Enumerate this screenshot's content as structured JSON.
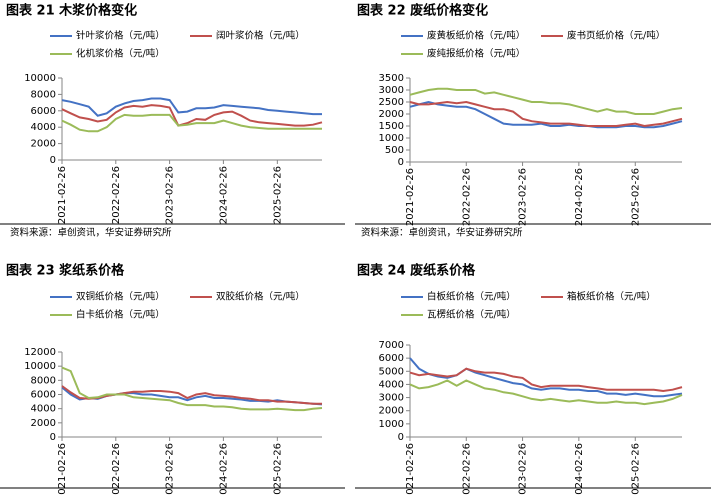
{
  "chart_data": [
    {
      "type": "line",
      "title": "图表 21 木浆价格变化",
      "source": "资料来源：卓创资讯，华安证券研究所",
      "x": [
        "2021-02-26",
        "2021-04-26",
        "2021-06-26",
        "2021-08-26",
        "2021-10-26",
        "2021-12-26",
        "2022-02-26",
        "2022-04-26",
        "2022-06-26",
        "2022-08-26",
        "2022-10-26",
        "2022-12-26",
        "2023-02-26",
        "2023-04-26",
        "2023-06-26",
        "2023-08-26",
        "2023-10-26",
        "2023-12-26",
        "2024-02-26",
        "2024-04-26",
        "2024-06-26",
        "2024-08-26",
        "2024-10-26",
        "2024-12-26",
        "2025-02-26",
        "2025-04-26",
        "2025-06-26",
        "2025-08-26",
        "2025-10-26",
        "2025-12-26"
      ],
      "xlim": [
        "2021-02-26",
        "2025-12-26"
      ],
      "xticks": [
        "2021-02-26",
        "2022-02-26",
        "2023-02-26",
        "2024-02-26",
        "2025-02-26"
      ],
      "ylim": [
        0,
        10000
      ],
      "yticks": [
        0,
        2000,
        4000,
        6000,
        8000,
        10000
      ],
      "series": [
        {
          "name": "针叶浆价格（元/吨）",
          "color": "#4472c4",
          "values": [
            7300,
            7100,
            6800,
            6500,
            5400,
            5700,
            6500,
            6900,
            7200,
            7300,
            7500,
            7500,
            7300,
            5800,
            5900,
            6300,
            6300,
            6400,
            6700,
            6600,
            6500,
            6400,
            6300,
            6100,
            6000,
            5900,
            5800,
            5700,
            5600,
            5600
          ]
        },
        {
          "name": "阔叶浆价格（元/吨）",
          "color": "#c0504d",
          "values": [
            6200,
            5700,
            5200,
            5000,
            4700,
            4900,
            5800,
            6400,
            6600,
            6500,
            6700,
            6600,
            6400,
            4200,
            4500,
            5000,
            4900,
            5500,
            5800,
            5900,
            5400,
            4800,
            4600,
            4500,
            4400,
            4300,
            4200,
            4200,
            4300,
            4600
          ]
        },
        {
          "name": "化机浆价格（元/吨）",
          "color": "#9bbb59",
          "values": [
            4800,
            4300,
            3700,
            3500,
            3500,
            4000,
            5000,
            5500,
            5400,
            5400,
            5500,
            5500,
            5500,
            4200,
            4300,
            4500,
            4500,
            4500,
            4800,
            4500,
            4200,
            4000,
            3900,
            3800,
            3800,
            3800,
            3800,
            3800,
            3800,
            3800
          ]
        }
      ]
    },
    {
      "type": "line",
      "title": "图表 22 废纸价格变化",
      "source": "资料来源：卓创资讯，华安证券研究所",
      "x": [
        "2021-02-26",
        "2021-04-26",
        "2021-06-26",
        "2021-08-26",
        "2021-10-26",
        "2021-12-26",
        "2022-02-26",
        "2022-04-26",
        "2022-06-26",
        "2022-08-26",
        "2022-10-26",
        "2022-12-26",
        "2023-02-26",
        "2023-04-26",
        "2023-06-26",
        "2023-08-26",
        "2023-10-26",
        "2023-12-26",
        "2024-02-26",
        "2024-04-26",
        "2024-06-26",
        "2024-08-26",
        "2024-10-26",
        "2024-12-26",
        "2025-02-26",
        "2025-04-26",
        "2025-06-26",
        "2025-08-26",
        "2025-10-26",
        "2025-12-26"
      ],
      "xlim": [
        "2021-02-26",
        "2025-12-26"
      ],
      "xticks": [
        "2021-02-26",
        "2022-02-26",
        "2023-02-26",
        "2024-02-26",
        "2025-02-26"
      ],
      "ylim": [
        0,
        3500
      ],
      "yticks": [
        0,
        500,
        1000,
        1500,
        2000,
        2500,
        3000,
        3500
      ],
      "series": [
        {
          "name": "废黄板纸价格（元/吨）",
          "color": "#4472c4",
          "values": [
            2300,
            2400,
            2500,
            2400,
            2350,
            2300,
            2300,
            2200,
            2000,
            1800,
            1600,
            1550,
            1550,
            1550,
            1600,
            1500,
            1500,
            1550,
            1500,
            1500,
            1450,
            1450,
            1450,
            1500,
            1500,
            1450,
            1450,
            1500,
            1600,
            1700
          ]
        },
        {
          "name": "废书页纸价格（元/吨）",
          "color": "#c0504d",
          "values": [
            2500,
            2400,
            2400,
            2450,
            2500,
            2450,
            2500,
            2400,
            2300,
            2200,
            2200,
            2100,
            1800,
            1700,
            1650,
            1600,
            1600,
            1600,
            1550,
            1500,
            1500,
            1500,
            1500,
            1550,
            1600,
            1500,
            1550,
            1600,
            1700,
            1800
          ]
        },
        {
          "name": "废纯报纸价格（元/吨）",
          "color": "#9bbb59",
          "values": [
            2800,
            2900,
            3000,
            3050,
            3050,
            3000,
            3000,
            3000,
            2850,
            2900,
            2800,
            2700,
            2600,
            2500,
            2500,
            2450,
            2450,
            2400,
            2300,
            2200,
            2100,
            2200,
            2100,
            2100,
            2000,
            2000,
            2000,
            2100,
            2200,
            2250
          ]
        }
      ]
    },
    {
      "type": "line",
      "title": "图表 23 浆纸系价格",
      "x": [
        "2021-02-26",
        "2021-04-26",
        "2021-06-26",
        "2021-08-26",
        "2021-10-26",
        "2021-12-26",
        "2022-02-26",
        "2022-04-26",
        "2022-06-26",
        "2022-08-26",
        "2022-10-26",
        "2022-12-26",
        "2023-02-26",
        "2023-04-26",
        "2023-06-26",
        "2023-08-26",
        "2023-10-26",
        "2023-12-26",
        "2024-02-26",
        "2024-04-26",
        "2024-06-26",
        "2024-08-26",
        "2024-10-26",
        "2024-12-26",
        "2025-02-26",
        "2025-04-26",
        "2025-06-26",
        "2025-08-26",
        "2025-10-26",
        "2025-12-26"
      ],
      "xlim": [
        "2021-02-26",
        "2025-12-26"
      ],
      "xticks": [
        "2021-02-26",
        "2022-02-26",
        "2023-02-26",
        "2024-02-26",
        "2025-02-26"
      ],
      "ylim": [
        0,
        12000
      ],
      "yticks": [
        0,
        2000,
        4000,
        6000,
        8000,
        10000,
        12000
      ],
      "series": [
        {
          "name": "双铜纸价格（元/吨）",
          "color": "#4472c4",
          "values": [
            7000,
            6000,
            5300,
            5500,
            5400,
            5800,
            6000,
            6200,
            6200,
            6000,
            6000,
            5800,
            5600,
            5600,
            5200,
            5600,
            5800,
            5500,
            5500,
            5400,
            5300,
            5100,
            5100,
            5000,
            5200,
            5000,
            4900,
            4800,
            4700,
            4600
          ]
        },
        {
          "name": "双胶纸价格（元/吨）",
          "color": "#c0504d",
          "values": [
            7200,
            6300,
            5500,
            5400,
            5500,
            5800,
            6000,
            6200,
            6400,
            6400,
            6500,
            6500,
            6400,
            6200,
            5500,
            6000,
            6200,
            5900,
            5800,
            5700,
            5500,
            5400,
            5200,
            5200,
            5000,
            5000,
            4900,
            4800,
            4700,
            4700
          ]
        },
        {
          "name": "白卡纸价格（元/吨）",
          "color": "#9bbb59",
          "values": [
            9800,
            9300,
            6200,
            5500,
            5600,
            6000,
            6000,
            6000,
            5600,
            5500,
            5400,
            5300,
            5200,
            4800,
            4500,
            4500,
            4500,
            4300,
            4300,
            4200,
            4000,
            3900,
            3900,
            3900,
            4000,
            3900,
            3800,
            3800,
            4000,
            4100
          ]
        }
      ]
    },
    {
      "type": "line",
      "title": "图表 24 废纸系价格",
      "x": [
        "2021-02-26",
        "2021-04-26",
        "2021-06-26",
        "2021-08-26",
        "2021-10-26",
        "2021-12-26",
        "2022-02-26",
        "2022-04-26",
        "2022-06-26",
        "2022-08-26",
        "2022-10-26",
        "2022-12-26",
        "2023-02-26",
        "2023-04-26",
        "2023-06-26",
        "2023-08-26",
        "2023-10-26",
        "2023-12-26",
        "2024-02-26",
        "2024-04-26",
        "2024-06-26",
        "2024-08-26",
        "2024-10-26",
        "2024-12-26",
        "2025-02-26",
        "2025-04-26",
        "2025-06-26",
        "2025-08-26",
        "2025-10-26",
        "2025-12-26"
      ],
      "xlim": [
        "2021-02-26",
        "2025-12-26"
      ],
      "xticks": [
        "2021-02-26",
        "2022-02-26",
        "2023-02-26",
        "2024-02-26",
        "2025-02-26"
      ],
      "ylim": [
        0,
        7000
      ],
      "yticks": [
        0,
        1000,
        2000,
        3000,
        4000,
        5000,
        6000,
        7000
      ],
      "series": [
        {
          "name": "白板纸价格（元/吨）",
          "color": "#4472c4",
          "values": [
            6000,
            5200,
            4800,
            4600,
            4500,
            4700,
            5200,
            4900,
            4700,
            4500,
            4300,
            4100,
            4000,
            3700,
            3600,
            3700,
            3700,
            3600,
            3600,
            3500,
            3500,
            3300,
            3300,
            3200,
            3300,
            3200,
            3100,
            3100,
            3200,
            3300
          ]
        },
        {
          "name": "箱板纸价格（元/吨）",
          "color": "#c0504d",
          "values": [
            4900,
            4700,
            4800,
            4700,
            4600,
            4700,
            5200,
            5000,
            4900,
            4900,
            4800,
            4600,
            4500,
            4000,
            3800,
            3900,
            3900,
            3900,
            3900,
            3800,
            3700,
            3600,
            3600,
            3600,
            3600,
            3600,
            3600,
            3500,
            3600,
            3800
          ]
        },
        {
          "name": "瓦楞纸价格（元/吨）",
          "color": "#9bbb59",
          "values": [
            4000,
            3700,
            3800,
            4000,
            4300,
            3900,
            4300,
            4000,
            3700,
            3600,
            3400,
            3300,
            3100,
            2900,
            2800,
            2900,
            2800,
            2700,
            2800,
            2700,
            2600,
            2600,
            2700,
            2600,
            2600,
            2500,
            2600,
            2700,
            2900,
            3200
          ]
        }
      ]
    }
  ]
}
